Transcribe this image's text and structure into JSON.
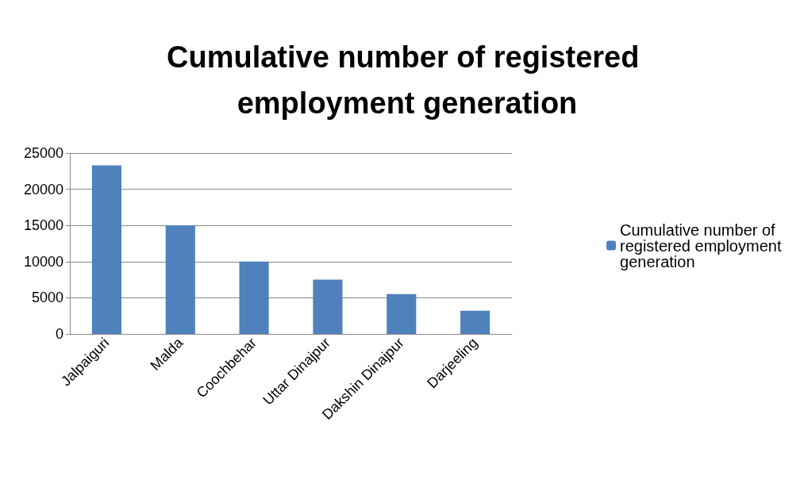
{
  "chart_data": {
    "type": "bar",
    "title": "Cumulative number of registered employment generation",
    "categories": [
      "Jalpaiguri",
      "Malda",
      "Coochbehar",
      "Uttar Dinajpur",
      "Dakshin Dinajpur",
      "Darjeeling"
    ],
    "series": [
      {
        "name": "Cumulative number of registered employment generation",
        "color": "#4f81bd",
        "values": [
          23300,
          15000,
          10000,
          7500,
          5500,
          3200
        ]
      }
    ],
    "ylim": [
      0,
      25000
    ],
    "yticks": [
      0,
      5000,
      10000,
      15000,
      20000,
      25000
    ],
    "grid": "y",
    "legend": "right"
  }
}
